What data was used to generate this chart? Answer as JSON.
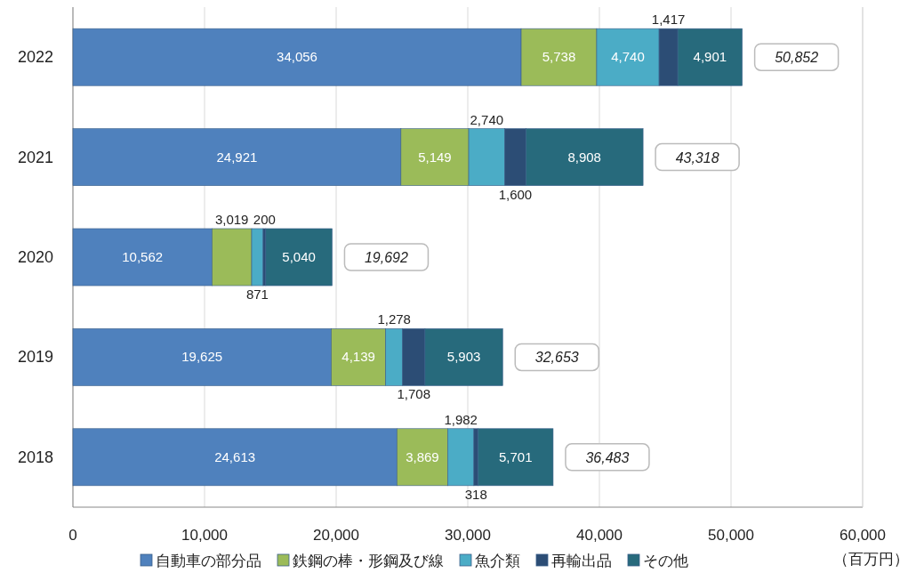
{
  "chart_data": {
    "type": "bar",
    "orientation": "horizontal",
    "stacked": true,
    "categories": [
      "2022",
      "2021",
      "2020",
      "2019",
      "2018"
    ],
    "series": [
      {
        "name": "自動車の部分品",
        "color": "#4f81bd",
        "values": [
          34056,
          24921,
          10562,
          19625,
          24613
        ],
        "value_labels": [
          "34,056",
          "24,921",
          "10,562",
          "19,625",
          "24,613"
        ]
      },
      {
        "name": "鉄鋼の棒・形鋼及び線",
        "color": "#9bbb59",
        "values": [
          5738,
          5149,
          3019,
          4139,
          3869
        ],
        "value_labels": [
          "5,738",
          "5,149",
          "3,019",
          "4,139",
          "3,869"
        ]
      },
      {
        "name": "魚介類",
        "color": "#4bacc6",
        "values": [
          4740,
          2740,
          871,
          1278,
          1982
        ],
        "value_labels": [
          "4,740",
          "2,740",
          "871",
          "1,278",
          "1,982"
        ]
      },
      {
        "name": "再輸出品",
        "color": "#2c4d75",
        "values": [
          1417,
          1600,
          200,
          1708,
          318
        ],
        "value_labels": [
          "1,417",
          "1,600",
          "200",
          "1,708",
          "318"
        ]
      },
      {
        "name": "その他",
        "color": "#276a7c",
        "values": [
          4901,
          8908,
          5040,
          5903,
          5701
        ],
        "value_labels": [
          "4,901",
          "8,908",
          "5,040",
          "5,903",
          "5,701"
        ]
      }
    ],
    "totals": [
      "50,852",
      "43,318",
      "19,692",
      "32,653",
      "36,483"
    ],
    "xlim": [
      0,
      60000
    ],
    "xticks": [
      0,
      {
        "value": 10000,
        "label": "10,000"
      },
      {
        "value": 20000,
        "label": "20,000"
      },
      {
        "value": 30000,
        "label": "30,000"
      },
      {
        "value": 40000,
        "label": "40,000"
      },
      {
        "value": 50000,
        "label": "50,000"
      },
      {
        "value": 60000,
        "label": "60,000"
      }
    ],
    "xlabel": "（百万円）",
    "grid": "x",
    "legend": "bottom"
  }
}
